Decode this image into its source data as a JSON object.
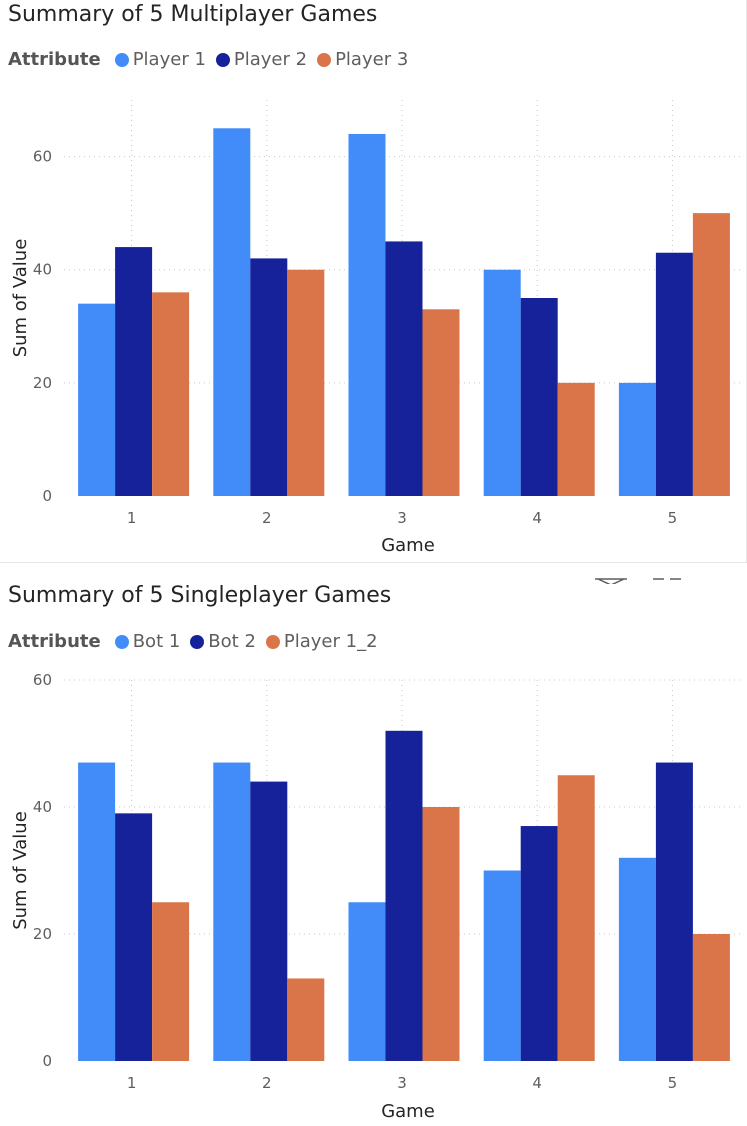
{
  "chart_data": [
    {
      "type": "bar",
      "title": "Summary of 5 Multiplayer Games",
      "legend_title": "Attribute",
      "legend_position": "top-left",
      "xlabel": "Game",
      "ylabel": "Sum of Value",
      "categories": [
        "1",
        "2",
        "3",
        "4",
        "5"
      ],
      "ylim": [
        0,
        70
      ],
      "yticks": [
        0,
        20,
        40,
        60
      ],
      "grid": true,
      "series": [
        {
          "name": "Player 1",
          "color": "#418cf8",
          "values": [
            34,
            65,
            64,
            40,
            20
          ]
        },
        {
          "name": "Player 2",
          "color": "#15229a",
          "values": [
            44,
            42,
            45,
            35,
            43
          ]
        },
        {
          "name": "Player 3",
          "color": "#d97548",
          "values": [
            36,
            40,
            33,
            20,
            50
          ]
        }
      ]
    },
    {
      "type": "bar",
      "title": "Summary of 5 Singleplayer Games",
      "legend_title": "Attribute",
      "legend_position": "top-left",
      "xlabel": "Game",
      "ylabel": "Sum of Value",
      "categories": [
        "1",
        "2",
        "3",
        "4",
        "5"
      ],
      "ylim": [
        0,
        60
      ],
      "yticks": [
        0,
        20,
        40,
        60
      ],
      "grid": true,
      "series": [
        {
          "name": "Bot 1",
          "color": "#418cf8",
          "values": [
            47,
            47,
            25,
            30,
            32
          ]
        },
        {
          "name": "Bot 2",
          "color": "#15229a",
          "values": [
            39,
            44,
            52,
            37,
            47
          ]
        },
        {
          "name": "Player 1_2",
          "color": "#d97548",
          "values": [
            25,
            13,
            40,
            45,
            20
          ]
        }
      ]
    }
  ]
}
